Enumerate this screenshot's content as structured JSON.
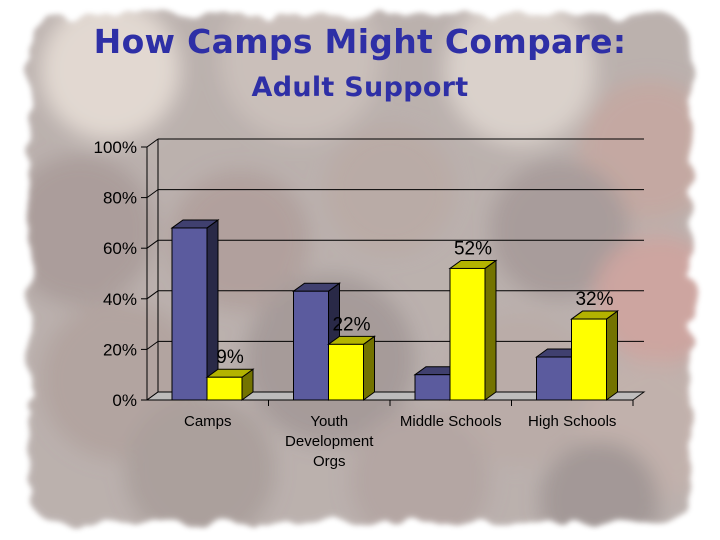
{
  "slide": {
    "title": "How Camps Might Compare:",
    "subtitle": "Adult Support"
  },
  "colors": {
    "title": "#2e2fa6",
    "series1": "#5b5b9e",
    "series2": "#ffff00",
    "axis": "#000000"
  },
  "chart_data": {
    "type": "bar",
    "categories": [
      [
        "Camps"
      ],
      [
        "Youth",
        "Development",
        "Orgs"
      ],
      [
        "Middle Schools"
      ],
      [
        "High Schools"
      ]
    ],
    "series": [
      {
        "values": [
          68,
          43,
          10,
          17
        ],
        "labels": [
          "",
          "",
          "",
          ""
        ]
      },
      {
        "values": [
          9,
          22,
          52,
          32
        ],
        "labels": [
          "9%",
          "22%",
          "52%",
          "32%"
        ]
      }
    ],
    "ylim": [
      0,
      100
    ],
    "yticks": [
      "0%",
      "20%",
      "40%",
      "60%",
      "80%",
      "100%"
    ],
    "grid": true,
    "style": "3d"
  }
}
